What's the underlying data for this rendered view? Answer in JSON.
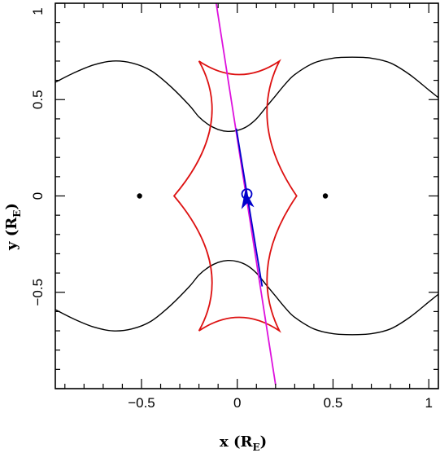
{
  "chart_data": {
    "type": "line",
    "xlabel": "x (R",
    "xlabel_sub": "E",
    "xlabel_close": ")",
    "ylabel": "y (R",
    "ylabel_sub": "E",
    "ylabel_close": ")",
    "xlim": [
      -0.95,
      1.05
    ],
    "ylim": [
      -1.0,
      1.0
    ],
    "x_ticks": [
      {
        "value": -0.5,
        "label": "−0.5"
      },
      {
        "value": 0,
        "label": "0"
      },
      {
        "value": 0.5,
        "label": "0.5"
      },
      {
        "value": 1,
        "label": "1"
      }
    ],
    "y_ticks": [
      {
        "value": -0.5,
        "label": "−0.5"
      },
      {
        "value": 0,
        "label": "0"
      },
      {
        "value": 0.5,
        "label": "0.5"
      },
      {
        "value": 1,
        "label": "1"
      }
    ],
    "grid": false,
    "colors": {
      "critical_curve": "#000000",
      "caustic": "#dd1111",
      "source_trajectory": "#dd11dd",
      "highlight_trajectory": "#0000cc"
    },
    "lenses": [
      {
        "x": -0.51,
        "y": 0.0
      },
      {
        "x": 0.46,
        "y": 0.0
      }
    ],
    "source_position": {
      "x": 0.05,
      "y": 0.01
    },
    "source_trajectory": {
      "points": [
        [
          -0.11,
          1.0
        ],
        [
          0.2,
          -0.98
        ]
      ]
    },
    "highlight_trajectory": {
      "points": [
        [
          -0.005,
          0.35
        ],
        [
          0.13,
          -0.47
        ]
      ]
    },
    "arrow": {
      "x": 0.05,
      "y": -0.03,
      "direction": [
        0.15,
        -1.0
      ]
    },
    "critical_curve_upper": {
      "x": [
        -0.95,
        -0.85,
        -0.75,
        -0.65,
        -0.55,
        -0.45,
        -0.35,
        -0.25,
        -0.2,
        -0.15,
        -0.1,
        -0.05,
        0.0,
        0.05,
        0.1,
        0.15,
        0.2,
        0.25,
        0.3,
        0.4,
        0.5,
        0.6,
        0.7,
        0.8,
        0.9,
        1.0,
        1.05
      ],
      "y": [
        0.59,
        0.64,
        0.68,
        0.7,
        0.69,
        0.65,
        0.57,
        0.47,
        0.41,
        0.37,
        0.345,
        0.335,
        0.34,
        0.36,
        0.4,
        0.46,
        0.52,
        0.58,
        0.63,
        0.69,
        0.715,
        0.72,
        0.715,
        0.69,
        0.63,
        0.55,
        0.51
      ]
    },
    "critical_curve_lower": {
      "x": [
        -0.95,
        -0.85,
        -0.75,
        -0.65,
        -0.55,
        -0.45,
        -0.35,
        -0.25,
        -0.2,
        -0.15,
        -0.1,
        -0.05,
        0.0,
        0.05,
        0.1,
        0.15,
        0.2,
        0.25,
        0.3,
        0.4,
        0.5,
        0.6,
        0.7,
        0.8,
        0.9,
        1.0,
        1.05
      ],
      "y": [
        -0.59,
        -0.64,
        -0.68,
        -0.7,
        -0.69,
        -0.65,
        -0.57,
        -0.47,
        -0.41,
        -0.37,
        -0.345,
        -0.335,
        -0.34,
        -0.36,
        -0.4,
        -0.46,
        -0.52,
        -0.58,
        -0.63,
        -0.69,
        -0.715,
        -0.72,
        -0.715,
        -0.69,
        -0.63,
        -0.55,
        -0.51
      ]
    },
    "caustic": {
      "cusps": [
        {
          "x": -0.2,
          "y": 0.7
        },
        {
          "x": 0.22,
          "y": 0.7
        },
        {
          "x": 0.31,
          "y": 0.0
        },
        {
          "x": 0.22,
          "y": -0.7
        },
        {
          "x": -0.2,
          "y": -0.7
        },
        {
          "x": -0.33,
          "y": 0.0
        }
      ],
      "edge_midpoints": [
        {
          "x": 0.01,
          "y": 0.63
        },
        {
          "x": 0.16,
          "y": 0.36
        },
        {
          "x": 0.16,
          "y": -0.36
        },
        {
          "x": 0.01,
          "y": -0.63
        },
        {
          "x": -0.14,
          "y": -0.36
        },
        {
          "x": -0.14,
          "y": 0.36
        }
      ]
    }
  }
}
